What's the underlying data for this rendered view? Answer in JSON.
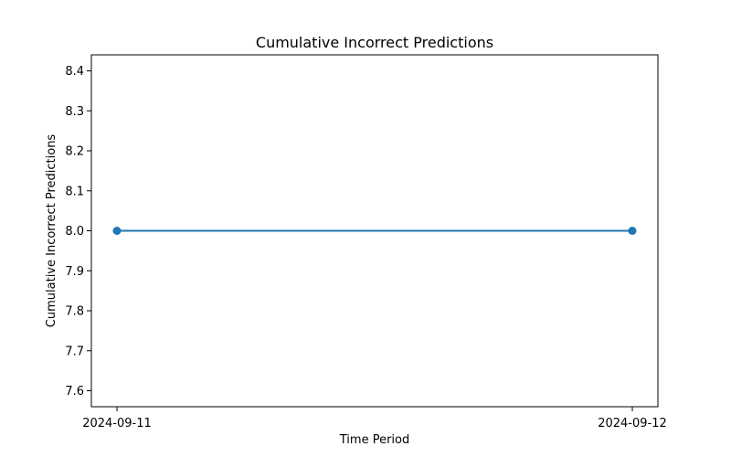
{
  "chart_data": {
    "type": "line",
    "title": "Cumulative Incorrect Predictions",
    "xlabel": "Time Period",
    "ylabel": "Cumulative Incorrect Predictions",
    "x": [
      "2024-09-11",
      "2024-09-12"
    ],
    "series": [
      {
        "values": [
          8.0,
          8.0
        ],
        "color": "#1f77b4"
      }
    ],
    "ylim": [
      7.56,
      8.44
    ],
    "yticks": [
      "7.6",
      "7.7",
      "7.8",
      "7.9",
      "8.0",
      "8.1",
      "8.2",
      "8.3",
      "8.4"
    ],
    "xticks": [
      "2024-09-11",
      "2024-09-12"
    ],
    "grid": false,
    "marker": "circle"
  }
}
